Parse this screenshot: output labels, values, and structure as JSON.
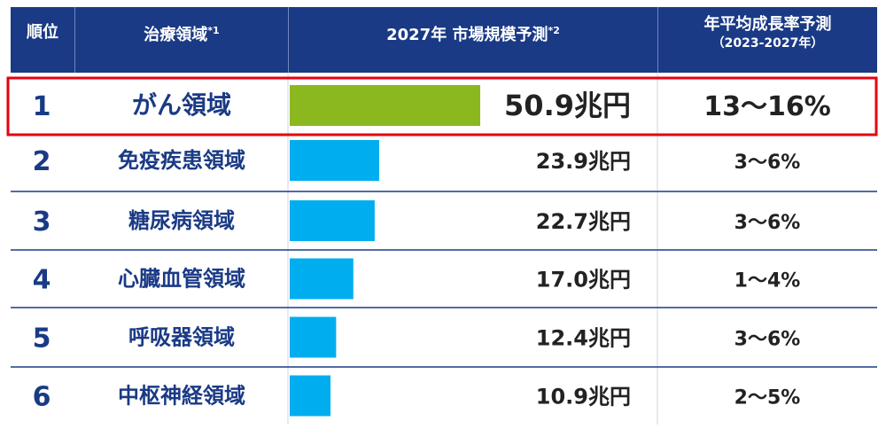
{
  "header": {
    "rank": "順位",
    "area": "治療領域",
    "area_note": "*1",
    "market": "2027年 市場規模予測",
    "market_note": "*2",
    "growth": "年平均成長率予測",
    "growth_period": "（2023-2027年）"
  },
  "chart_data": {
    "type": "bar",
    "orientation": "horizontal",
    "categories": [
      "がん領域",
      "免疫疾患領域",
      "糖尿病領域",
      "心臓血管領域",
      "呼吸器領域",
      "中枢神経領域"
    ],
    "ranks": [
      "1",
      "2",
      "3",
      "4",
      "5",
      "6"
    ],
    "values": [
      50.9,
      23.9,
      22.7,
      17.0,
      12.4,
      10.9
    ],
    "unit": "兆円",
    "value_labels": [
      "50.9兆円",
      "23.9兆円",
      "22.7兆円",
      "17.0兆円",
      "12.4兆円",
      "10.9兆円"
    ],
    "growth_labels": [
      "13〜16%",
      "3〜6%",
      "3〜6%",
      "1〜4%",
      "3〜6%",
      "2〜5%"
    ],
    "highlight_index": 0,
    "xlim": [
      0,
      50.9
    ],
    "colors": {
      "highlight_bar": "#8ab81e",
      "bar": "#00aeef",
      "header_bg": "#1a3a85",
      "category_text": "#1a3a85",
      "highlight_border": "#e60012",
      "row_divider": "#1a3a85",
      "value_text": "#222222"
    }
  }
}
